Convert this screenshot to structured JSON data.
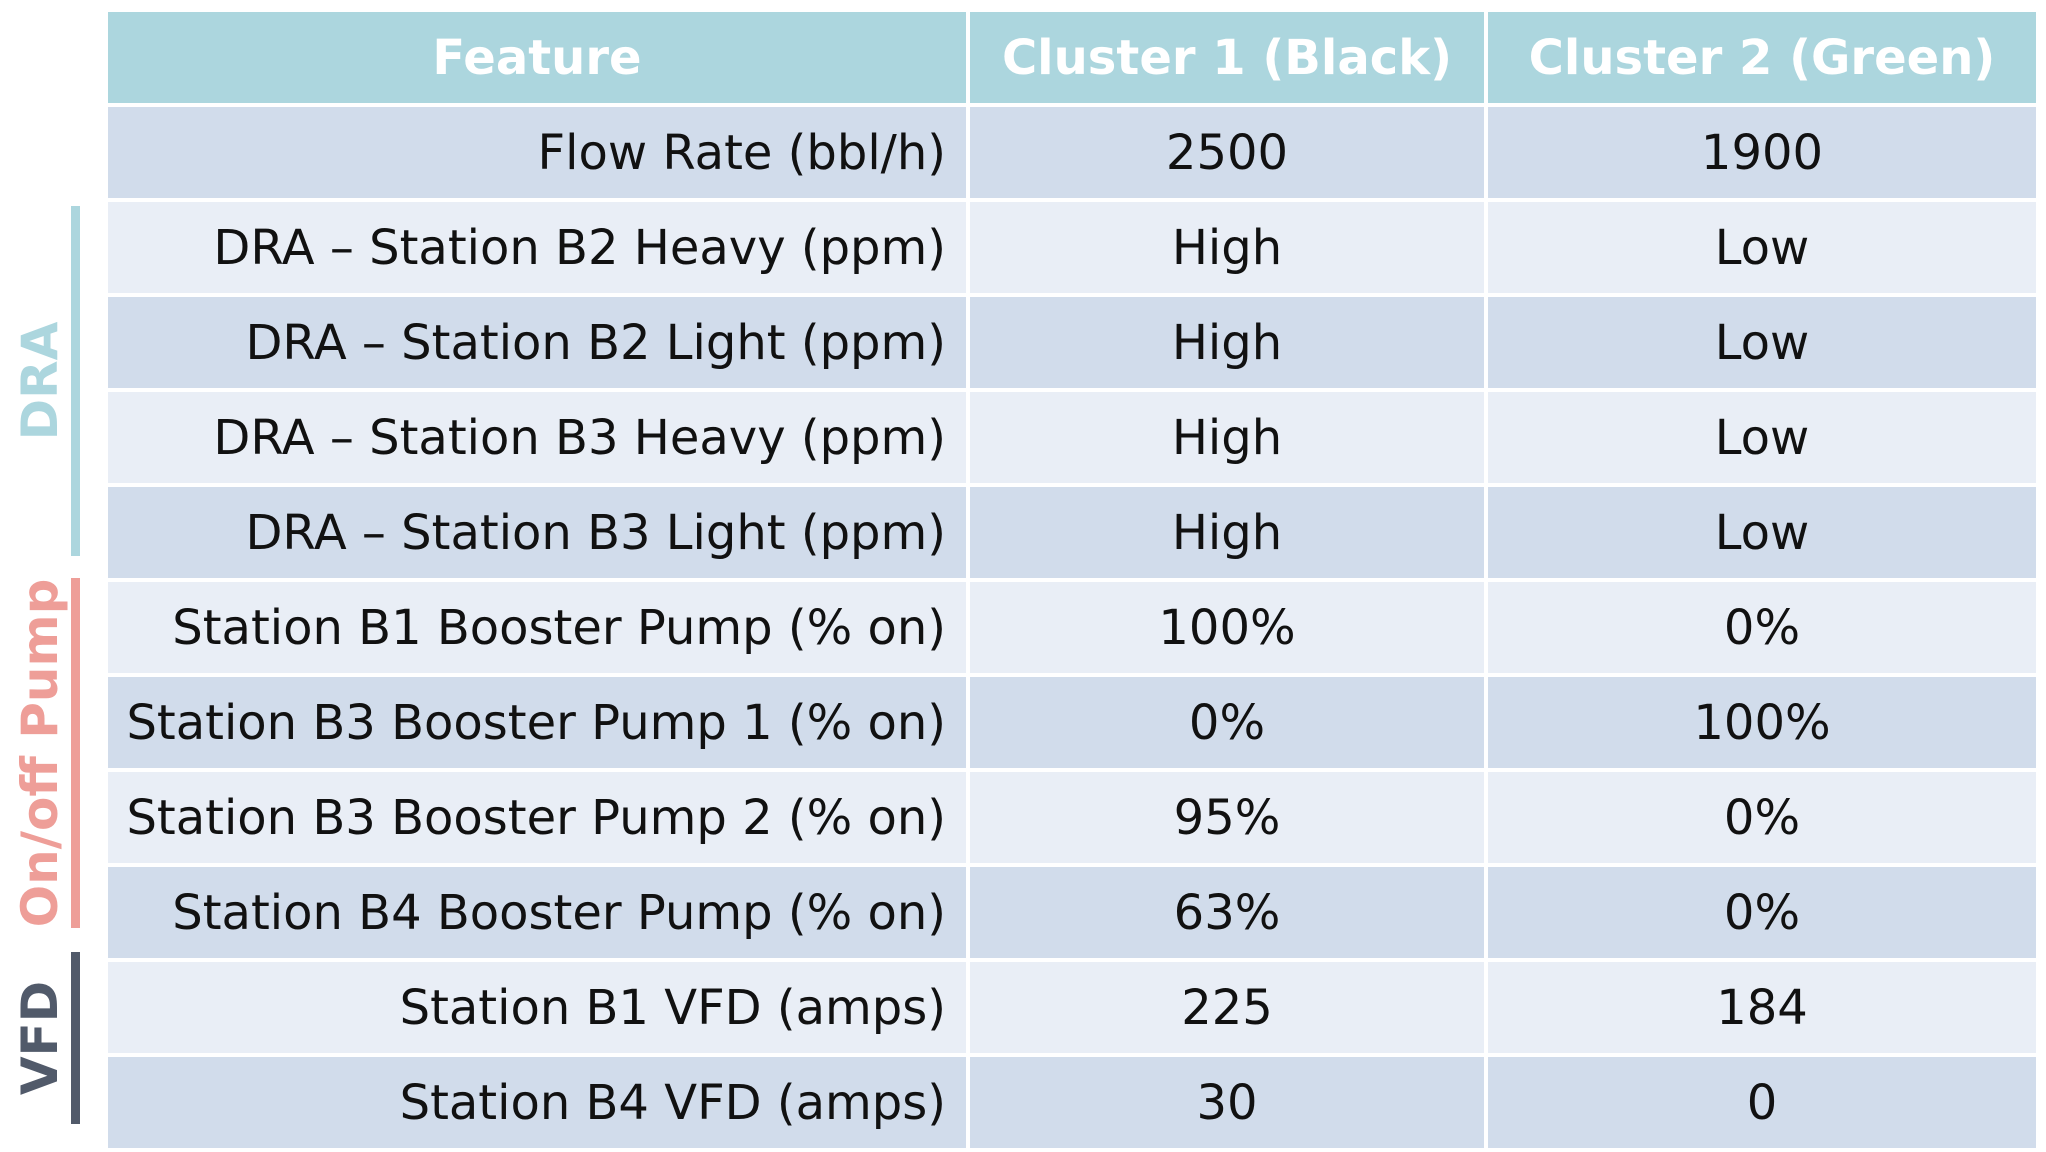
{
  "table": {
    "headers": [
      "Feature",
      "Cluster 1 (Black)",
      "Cluster 2 (Green)"
    ],
    "rows": [
      [
        "Flow Rate (bbl/h)",
        "2500",
        "1900"
      ],
      [
        "DRA – Station B2 Heavy (ppm)",
        "High",
        "Low"
      ],
      [
        "DRA – Station B2 Light (ppm)",
        "High",
        "Low"
      ],
      [
        "DRA – Station B3 Heavy (ppm)",
        "High",
        "Low"
      ],
      [
        "DRA – Station B3 Light (ppm)",
        "High",
        "Low"
      ],
      [
        "Station B1 Booster Pump (% on)",
        "100%",
        "0%"
      ],
      [
        "Station B3 Booster Pump 1 (% on)",
        "0%",
        "100%"
      ],
      [
        "Station B3 Booster Pump 2 (% on)",
        "95%",
        "0%"
      ],
      [
        "Station B4 Booster Pump (% on)",
        "63%",
        "0%"
      ],
      [
        "Station B1 VFD (amps)",
        "225",
        "184"
      ],
      [
        "Station B4 VFD (amps)",
        "30",
        "0"
      ]
    ]
  },
  "groups": {
    "dra": {
      "label": "DRA",
      "color": "#acd6de"
    },
    "pump": {
      "label": "On/off Pump",
      "color": "#ee9e98"
    },
    "vfd": {
      "label": "VFD",
      "color": "#515a6a"
    }
  },
  "colors": {
    "header_bg": "#acd6de",
    "row_dark": "#d1dceb",
    "row_light": "#e9eef6"
  }
}
